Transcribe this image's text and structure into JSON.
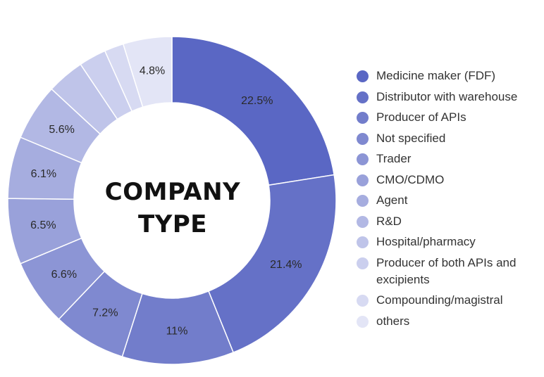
{
  "chart_data": {
    "type": "pie",
    "title": "COMPANY TYPE",
    "title_lines": [
      "COMPANY",
      "TYPE"
    ],
    "legend_position": "right",
    "slices": [
      {
        "label": "Medicine maker (FDF)",
        "value": 22.5,
        "display": "22.5%",
        "color": "#5a67c4"
      },
      {
        "label": "Distributor with warehouse",
        "value": 21.4,
        "display": "21.4%",
        "color": "#6571c7"
      },
      {
        "label": "Producer of APIs",
        "value": 11,
        "display": "11%",
        "color": "#727dcb"
      },
      {
        "label": "Not specified",
        "value": 7.2,
        "display": "7.2%",
        "color": "#7f89d0"
      },
      {
        "label": "Trader",
        "value": 6.6,
        "display": "6.6%",
        "color": "#8c95d5"
      },
      {
        "label": "CMO/CDMO",
        "value": 6.5,
        "display": "6.5%",
        "color": "#99a1da"
      },
      {
        "label": "Agent",
        "value": 6.1,
        "display": "6.1%",
        "color": "#a6addf"
      },
      {
        "label": "R&D",
        "value": 5.6,
        "display": "5.6%",
        "color": "#b2b8e4"
      },
      {
        "label": "Hospital/pharmacy",
        "value": 3.7,
        "display": "",
        "color": "#bfc4e9"
      },
      {
        "label": "Producer of both APIs and excipients",
        "value": 2.7,
        "display": "",
        "color": "#cbcfee"
      },
      {
        "label": "Compounding/magistral",
        "value": 1.9,
        "display": "",
        "color": "#d7daf2"
      },
      {
        "label": "others",
        "value": 4.8,
        "display": "4.8%",
        "color": "#e3e5f6"
      }
    ]
  }
}
